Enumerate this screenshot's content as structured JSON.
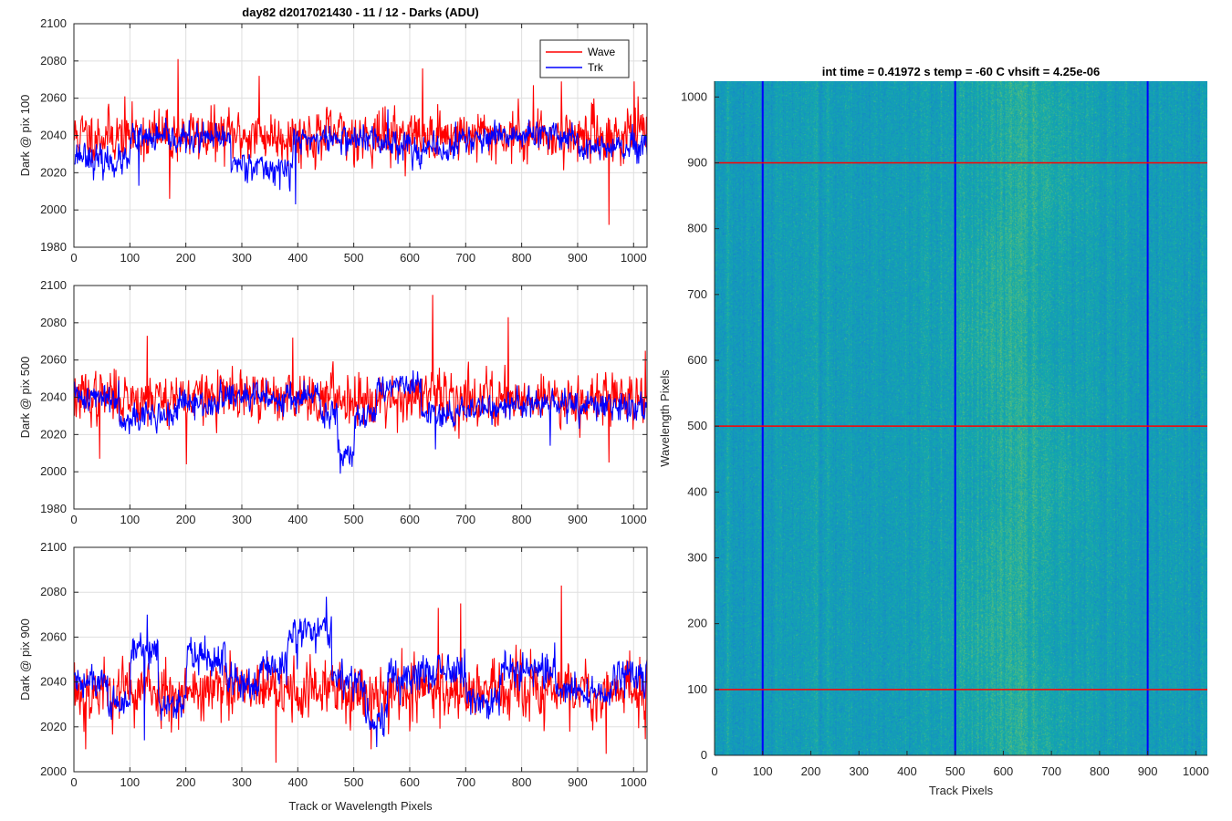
{
  "figure_title": "day82 d2017021430 - 11 / 12 - Darks (ADU)",
  "chart_data": [
    {
      "type": "line",
      "id": "ax1",
      "title": "day82 d2017021430 - 11 / 12 - Darks (ADU)",
      "xlabel": "",
      "ylabel": "Dark @ pix 100",
      "xlim": [
        0,
        1024
      ],
      "ylim": [
        1980,
        2100
      ],
      "xticks": [
        "0",
        "100",
        "200",
        "300",
        "400",
        "500",
        "600",
        "700",
        "800",
        "900",
        "1000"
      ],
      "yticks": [
        "1980",
        "2000",
        "2020",
        "2040",
        "2060",
        "2080",
        "2100"
      ],
      "grid": true,
      "legend": {
        "placement": "top-right",
        "entries": [
          "Wave",
          "Trk"
        ]
      },
      "series": [
        {
          "name": "Wave",
          "color": "#ff0000",
          "n": 1024,
          "mean": 2040,
          "noise": 9,
          "seed": 11,
          "segments": [
            [
              0,
              1024,
              2040
            ]
          ],
          "spikes": [
            [
              185,
              2081
            ],
            [
              955,
              1992
            ],
            [
              622,
              2076
            ],
            [
              330,
              2072
            ],
            [
              870,
              2069
            ],
            [
              1000,
              2069
            ],
            [
              820,
              2067
            ],
            [
              90,
              2061
            ],
            [
              170,
              2006
            ]
          ]
        },
        {
          "name": "Trk",
          "color": "#0000ff",
          "n": 1024,
          "mean": 2035,
          "noise": 5,
          "seed": 23,
          "segments": [
            [
              0,
              30,
              2030
            ],
            [
              30,
              100,
              2026
            ],
            [
              100,
              280,
              2038
            ],
            [
              280,
              330,
              2025
            ],
            [
              330,
              390,
              2022
            ],
            [
              390,
              540,
              2038
            ],
            [
              540,
              600,
              2036
            ],
            [
              600,
              680,
              2032
            ],
            [
              680,
              770,
              2038
            ],
            [
              770,
              900,
              2040
            ],
            [
              900,
              1024,
              2033
            ]
          ],
          "spikes": [
            [
              395,
              2003
            ],
            [
              385,
              2010
            ],
            [
              115,
              2013
            ],
            [
              560,
              2054
            ]
          ]
        }
      ]
    },
    {
      "type": "line",
      "id": "ax2",
      "title": "",
      "xlabel": "",
      "ylabel": "Dark @ pix 500",
      "xlim": [
        0,
        1024
      ],
      "ylim": [
        1980,
        2100
      ],
      "xticks": [
        "0",
        "100",
        "200",
        "300",
        "400",
        "500",
        "600",
        "700",
        "800",
        "900",
        "1000"
      ],
      "yticks": [
        "1980",
        "2000",
        "2020",
        "2040",
        "2060",
        "2080",
        "2100"
      ],
      "grid": true,
      "series": [
        {
          "name": "Wave",
          "color": "#ff0000",
          "n": 1024,
          "mean": 2040,
          "noise": 9,
          "seed": 37,
          "segments": [
            [
              0,
              1024,
              2040
            ]
          ],
          "spikes": [
            [
              640,
              2095
            ],
            [
              775,
              2083
            ],
            [
              390,
              2072
            ],
            [
              130,
              2073
            ],
            [
              1020,
              2065
            ],
            [
              955,
              2005
            ],
            [
              200,
              2004
            ],
            [
              45,
              2007
            ]
          ]
        },
        {
          "name": "Trk",
          "color": "#0000ff",
          "n": 1024,
          "mean": 2036,
          "noise": 5,
          "seed": 41,
          "segments": [
            [
              0,
              80,
              2040
            ],
            [
              80,
              180,
              2030
            ],
            [
              180,
              260,
              2036
            ],
            [
              260,
              440,
              2040
            ],
            [
              440,
              470,
              2030
            ],
            [
              470,
              500,
              2012
            ],
            [
              500,
              540,
              2030
            ],
            [
              540,
              620,
              2046
            ],
            [
              620,
              680,
              2030
            ],
            [
              680,
              760,
              2034
            ],
            [
              760,
              880,
              2036
            ],
            [
              880,
              1024,
              2035
            ]
          ],
          "spikes": [
            [
              475,
              1999
            ],
            [
              480,
              2003
            ],
            [
              645,
              2012
            ],
            [
              850,
              2014
            ]
          ]
        }
      ]
    },
    {
      "type": "line",
      "id": "ax3",
      "title": "",
      "xlabel": "Track or Wavelength Pixels",
      "ylabel": "Dark @ pix 900",
      "xlim": [
        0,
        1024
      ],
      "ylim": [
        2000,
        2100
      ],
      "xticks": [
        "0",
        "100",
        "200",
        "300",
        "400",
        "500",
        "600",
        "700",
        "800",
        "900",
        "1000"
      ],
      "yticks": [
        "2000",
        "2020",
        "2040",
        "2060",
        "2080",
        "2100"
      ],
      "grid": true,
      "series": [
        {
          "name": "Wave",
          "color": "#ff0000",
          "n": 1024,
          "mean": 2036,
          "noise": 9,
          "seed": 53,
          "segments": [
            [
              0,
              1024,
              2036
            ]
          ],
          "spikes": [
            [
              360,
              2004
            ],
            [
              870,
              2083
            ],
            [
              950,
              2008
            ],
            [
              20,
              2010
            ],
            [
              530,
              2010
            ],
            [
              650,
              2073
            ],
            [
              690,
              2075
            ]
          ]
        },
        {
          "name": "Trk",
          "color": "#0000ff",
          "n": 1024,
          "mean": 2040,
          "noise": 5,
          "seed": 61,
          "segments": [
            [
              0,
              60,
              2040
            ],
            [
              60,
              100,
              2030
            ],
            [
              100,
              150,
              2055
            ],
            [
              150,
              200,
              2030
            ],
            [
              200,
              270,
              2052
            ],
            [
              270,
              330,
              2040
            ],
            [
              330,
              380,
              2046
            ],
            [
              380,
              460,
              2062
            ],
            [
              460,
              520,
              2040
            ],
            [
              520,
              560,
              2022
            ],
            [
              560,
              620,
              2042
            ],
            [
              620,
              700,
              2046
            ],
            [
              700,
              760,
              2032
            ],
            [
              760,
              860,
              2046
            ],
            [
              860,
              960,
              2035
            ],
            [
              960,
              1024,
              2042
            ]
          ],
          "spikes": [
            [
              450,
              2078
            ],
            [
              540,
              2011
            ],
            [
              130,
              2070
            ],
            [
              125,
              2014
            ]
          ]
        }
      ]
    },
    {
      "type": "heatmap",
      "id": "ax4",
      "title": "int time = 0.41972 s    temp = -60 C    vhsift = 4.25e-06",
      "xlabel": "Track Pixels",
      "ylabel": "Wavelength Pixels",
      "xlim": [
        0,
        1024
      ],
      "ylim": [
        0,
        1024
      ],
      "xticks": [
        "0",
        "100",
        "200",
        "300",
        "400",
        "500",
        "600",
        "700",
        "800",
        "900",
        "1000"
      ],
      "yticks": [
        "0",
        "100",
        "200",
        "300",
        "400",
        "500",
        "600",
        "700",
        "800",
        "900",
        "1000"
      ],
      "colormap": "parula",
      "vertical_lines": {
        "color": "#0000ff",
        "x": [
          100,
          500,
          900
        ]
      },
      "horizontal_lines": {
        "color": "#ff0000",
        "y": [
          100,
          500,
          900
        ]
      },
      "bright_band_center_x": 630
    }
  ]
}
